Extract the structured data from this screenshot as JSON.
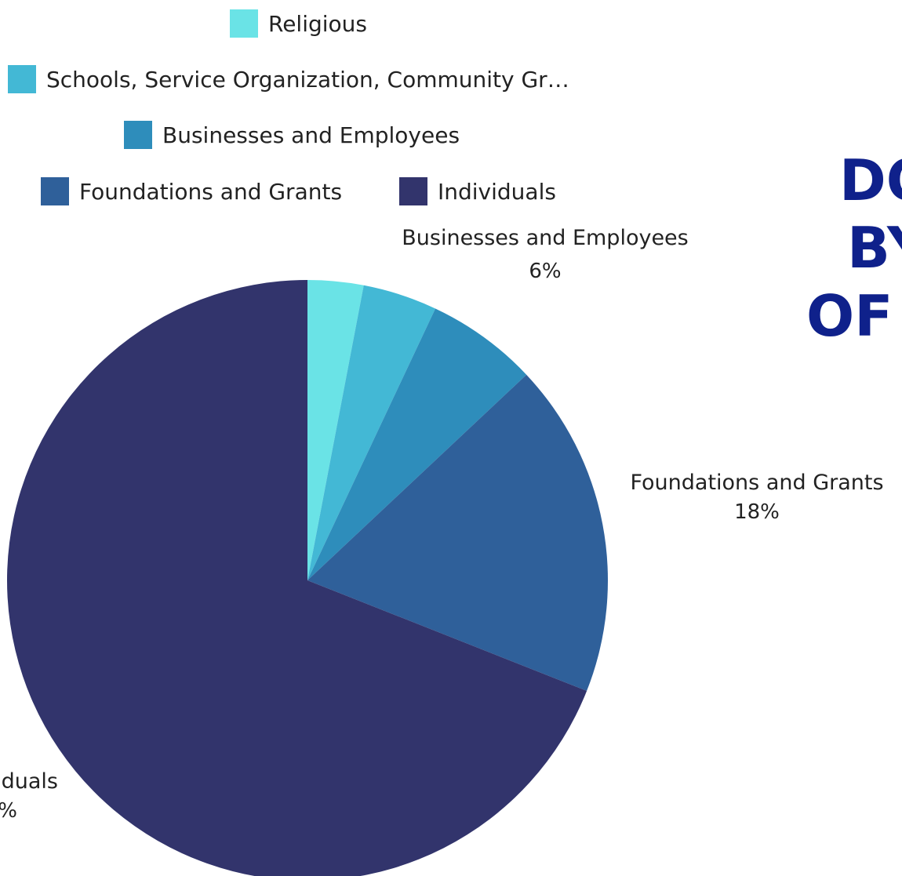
{
  "chart_data": {
    "type": "pie",
    "title_lines": [
      "DO",
      "BY",
      "OF"
    ],
    "colors": {
      "title": "#0f218b",
      "text": "#222222",
      "background": "#ffffff"
    },
    "legend": [
      {
        "label": "Religious",
        "color": "#6ae3e6"
      },
      {
        "label": "Schools, Service Organization, Community Gr…",
        "color": "#43b8d5"
      },
      {
        "label": "Businesses and Employees",
        "color": "#2e8dbb"
      },
      {
        "label": "Foundations and Grants",
        "color": "#2f609a"
      },
      {
        "label": "Individuals",
        "color": "#32346c"
      }
    ],
    "slices": [
      {
        "label": "Religious",
        "value": 3,
        "color": "#6ae3e6",
        "label_visible": false,
        "pct_text": ""
      },
      {
        "label": "Schools, Service Organization, Community Groups",
        "value": 4,
        "color": "#43b8d5",
        "label_visible": false,
        "pct_text": ""
      },
      {
        "label": "Businesses and Employees",
        "value": 6,
        "color": "#2e8dbb",
        "label_visible": true,
        "pct_text": "6%"
      },
      {
        "label": "Foundations and Grants",
        "value": 18,
        "color": "#2f609a",
        "label_visible": true,
        "pct_text": "18%"
      },
      {
        "label": "Individuals",
        "value": 69,
        "color": "#32346c",
        "label_visible": true,
        "label_text": "duals",
        "pct_text": "%"
      }
    ]
  }
}
